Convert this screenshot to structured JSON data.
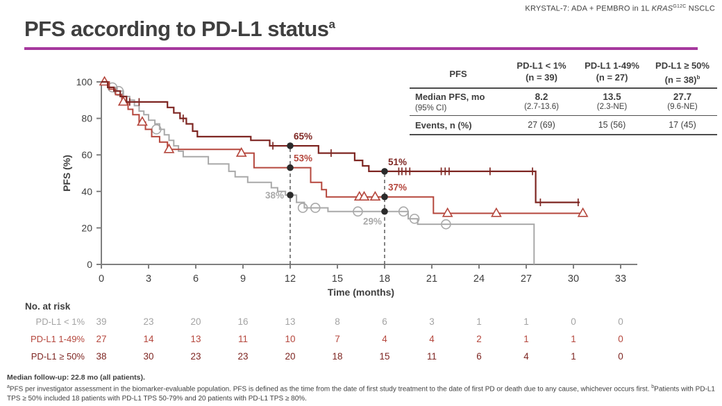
{
  "header": {
    "study_prefix": "KRYSTAL-7: ADA + PEMBRO in 1L ",
    "gene": "KRAS",
    "gene_superscript": "G12C",
    "suffix": " NSCLC"
  },
  "title": {
    "text": "PFS according to PD-L1 status",
    "superscript": "a"
  },
  "colors": {
    "accent_rule": "#a6399e",
    "text": "#3f3f3f",
    "axis": "#7f7f7f",
    "series_lt1": "#a9a9a9",
    "series_1_49": "#b5473d",
    "series_ge50": "#7e2622",
    "milestone_dot": "#2b2b2b",
    "dashed_line": "#4f4f4f"
  },
  "summary_table": {
    "corner_label": "PFS",
    "columns": [
      {
        "title": "PD-L1 < 1%",
        "subtitle": "(n = 39)",
        "superscript": ""
      },
      {
        "title": "PD-L1 1-49%",
        "subtitle": "(n = 27)",
        "superscript": ""
      },
      {
        "title": "PD-L1 ≥ 50%",
        "subtitle": "(n = 38)",
        "superscript": "b"
      }
    ],
    "median_row": {
      "label": "Median PFS, mo",
      "sublabel": "(95% CI)",
      "values": [
        "8.2",
        "13.5",
        "27.7"
      ],
      "subvalues": [
        "(2.7-13.6)",
        "(2.3-NE)",
        "(9.6-NE)"
      ]
    },
    "events_row": {
      "label": "Events, n (%)",
      "values": [
        "27 (69)",
        "15 (56)",
        "17 (45)"
      ]
    }
  },
  "chart_data": {
    "type": "line",
    "subtype": "kaplan-meier-step",
    "title": "",
    "xlabel": "Time (months)",
    "ylabel": "PFS (%)",
    "xlim": [
      0,
      33
    ],
    "xtick_interval": 3,
    "ylim": [
      0,
      100
    ],
    "ytick_interval": 20,
    "grid": false,
    "legend_position": "none",
    "series": [
      {
        "name": "PD-L1 < 1%",
        "n": 39,
        "color": "#a9a9a9",
        "censor_marker": "circle",
        "steps": [
          [
            0,
            100
          ],
          [
            0.5,
            97
          ],
          [
            1,
            95
          ],
          [
            1.4,
            92
          ],
          [
            1.8,
            90
          ],
          [
            2.1,
            87
          ],
          [
            2.4,
            84
          ],
          [
            2.7,
            82
          ],
          [
            3,
            79
          ],
          [
            3.4,
            77
          ],
          [
            3.7,
            74
          ],
          [
            4,
            71
          ],
          [
            4.3,
            68
          ],
          [
            4.6,
            65
          ],
          [
            4.9,
            62
          ],
          [
            5.2,
            59
          ],
          [
            6.8,
            55
          ],
          [
            8.1,
            51
          ],
          [
            8.5,
            48
          ],
          [
            9.3,
            45
          ],
          [
            10.8,
            42
          ],
          [
            11.2,
            40
          ],
          [
            11.7,
            38
          ],
          [
            12.4,
            34
          ],
          [
            12.9,
            31
          ],
          [
            14.4,
            29
          ],
          [
            19.5,
            25
          ],
          [
            20.1,
            22
          ],
          [
            27.5,
            0
          ]
        ],
        "censors": [
          [
            0.7,
            97
          ],
          [
            1.1,
            95
          ],
          [
            3.5,
            74
          ],
          [
            12.8,
            31
          ],
          [
            13.6,
            31
          ],
          [
            16.3,
            29
          ],
          [
            19.2,
            29
          ],
          [
            19.9,
            25
          ],
          [
            21.9,
            22
          ]
        ]
      },
      {
        "name": "PD-L1 1-49%",
        "n": 27,
        "color": "#b5473d",
        "censor_marker": "triangle",
        "steps": [
          [
            0,
            100
          ],
          [
            0.5,
            96
          ],
          [
            0.9,
            93
          ],
          [
            1.3,
            89
          ],
          [
            1.7,
            85
          ],
          [
            2,
            82
          ],
          [
            2.4,
            78
          ],
          [
            2.8,
            74
          ],
          [
            3.2,
            70
          ],
          [
            3.7,
            67
          ],
          [
            4.2,
            63
          ],
          [
            8.8,
            61
          ],
          [
            9.7,
            53
          ],
          [
            13.3,
            45
          ],
          [
            14,
            41
          ],
          [
            14.3,
            37
          ],
          [
            21.1,
            28
          ],
          [
            30.6,
            28
          ]
        ],
        "censors": [
          [
            0.2,
            100
          ],
          [
            1.4,
            89
          ],
          [
            2.6,
            78
          ],
          [
            4.3,
            63
          ],
          [
            8.9,
            61
          ],
          [
            16.4,
            37
          ],
          [
            16.7,
            37
          ],
          [
            17.4,
            37
          ],
          [
            22,
            28
          ],
          [
            25.1,
            28
          ],
          [
            30.6,
            28
          ]
        ]
      },
      {
        "name": "PD-L1 ≥ 50%",
        "n": 38,
        "color": "#7e2622",
        "censor_marker": "tick",
        "steps": [
          [
            0,
            100
          ],
          [
            0.4,
            97
          ],
          [
            0.8,
            95
          ],
          [
            1.2,
            92
          ],
          [
            1.6,
            89
          ],
          [
            4.2,
            86
          ],
          [
            4.6,
            83
          ],
          [
            5,
            80
          ],
          [
            5.4,
            77
          ],
          [
            5.8,
            73
          ],
          [
            6.1,
            70
          ],
          [
            9.5,
            68
          ],
          [
            10.7,
            65
          ],
          [
            13.8,
            61
          ],
          [
            16.1,
            57
          ],
          [
            16.6,
            54
          ],
          [
            17,
            51
          ],
          [
            27.6,
            34
          ],
          [
            30.4,
            34
          ]
        ],
        "censors": [
          [
            1.8,
            89
          ],
          [
            2.4,
            89
          ],
          [
            5.2,
            80
          ],
          [
            10.9,
            65
          ],
          [
            14.6,
            61
          ],
          [
            18.9,
            51
          ],
          [
            19.1,
            51
          ],
          [
            19.35,
            51
          ],
          [
            19.6,
            51
          ],
          [
            21.6,
            51
          ],
          [
            21.85,
            51
          ],
          [
            22.1,
            51
          ],
          [
            24.7,
            51
          ],
          [
            27.4,
            51
          ],
          [
            27.9,
            34
          ],
          [
            30.3,
            34
          ]
        ]
      }
    ],
    "milestones": [
      {
        "x": 12,
        "points": [
          {
            "series": 2,
            "y": 65,
            "label": "65%",
            "pos": "above-right"
          },
          {
            "series": 1,
            "y": 53,
            "label": "53%",
            "pos": "above-right"
          },
          {
            "series": 0,
            "y": 38,
            "label": "38%",
            "pos": "left"
          }
        ]
      },
      {
        "x": 18,
        "points": [
          {
            "series": 2,
            "y": 51,
            "label": "51%",
            "pos": "above-right"
          },
          {
            "series": 1,
            "y": 37,
            "label": "37%",
            "pos": "above-right"
          },
          {
            "series": 0,
            "y": 29,
            "label": "29%",
            "pos": "below-left"
          }
        ]
      }
    ]
  },
  "at_risk": {
    "title": "No. at risk",
    "timepoints": [
      0,
      3,
      6,
      9,
      12,
      15,
      18,
      21,
      24,
      27,
      30,
      33
    ],
    "rows": [
      {
        "label": "PD-L1 < 1%",
        "color": "#a3a3a3",
        "values": [
          "39",
          "23",
          "20",
          "16",
          "13",
          "8",
          "6",
          "3",
          "1",
          "1",
          "0",
          "0"
        ]
      },
      {
        "label": "PD-L1 1-49%",
        "color": "#b5473d",
        "values": [
          "27",
          "14",
          "13",
          "11",
          "10",
          "7",
          "4",
          "4",
          "2",
          "1",
          "1",
          "0"
        ]
      },
      {
        "label": "PD-L1 ≥ 50%",
        "color": "#7e2622",
        "values": [
          "38",
          "30",
          "23",
          "23",
          "20",
          "18",
          "15",
          "11",
          "6",
          "4",
          "1",
          "0"
        ]
      }
    ]
  },
  "footnotes": {
    "median_followup": "Median follow-up: 22.8 mo (all patients).",
    "notes": [
      {
        "sup": "a",
        "text": "PFS per investigator assessment in the biomarker-evaluable population. PFS is defined as the time from the date of first study treatment to the date of first PD or death due to any cause, whichever occurs first. "
      },
      {
        "sup": "b",
        "text": "Patients with PD-L1 TPS ≥ 50% included 18 patients with PD-L1 TPS 50-79% and 20 patients with PD-L1 TPS ≥ 80%."
      }
    ]
  }
}
